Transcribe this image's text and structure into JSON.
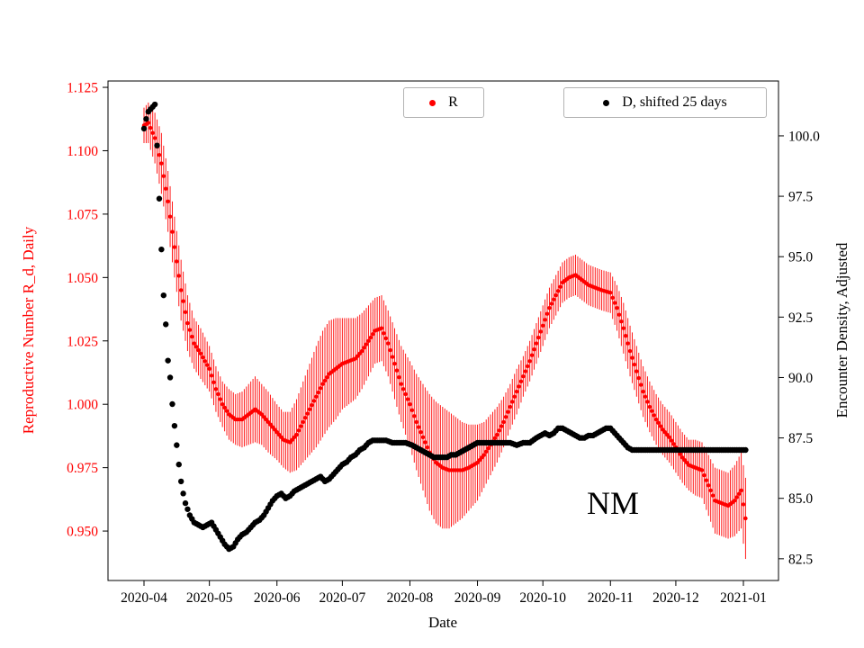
{
  "figure": {
    "xlabel": "Date",
    "ylabel_left": "Reproductive Number R_d, Daily",
    "ylabel_right": "Encounter Density, Adjusted",
    "annotation": "NM",
    "legend": [
      {
        "label": "R",
        "color": "#ff0000"
      },
      {
        "label": "D, shifted 25 days",
        "color": "#000000"
      }
    ]
  },
  "chart_data": {
    "type": "scatter",
    "title": "",
    "xlabel": "Date",
    "annotation": {
      "text": "NM",
      "x": "2020-10-22",
      "y_left": 0.962
    },
    "x_ticks": [
      "2020-04",
      "2020-05",
      "2020-06",
      "2020-07",
      "2020-08",
      "2020-09",
      "2020-10",
      "2020-11",
      "2020-12",
      "2021-01"
    ],
    "axes": {
      "left": {
        "label": "Reproductive Number R_d, Daily",
        "color": "#ff0000",
        "decimals": 3,
        "ticks": [
          0.95,
          0.975,
          1.0,
          1.025,
          1.05,
          1.075,
          1.1,
          1.125
        ],
        "range": [
          0.9305,
          1.1275
        ]
      },
      "right": {
        "label": "Encounter Density, Adjusted",
        "color": "#000000",
        "decimals": 1,
        "ticks": [
          82.5,
          85.0,
          87.5,
          90.0,
          92.5,
          95.0,
          97.5,
          100.0
        ],
        "range": [
          81.6,
          102.27
        ]
      }
    },
    "series": [
      {
        "name": "R",
        "axis": "left",
        "color": "#ff0000",
        "marker": "dot",
        "marker_r": 2.2,
        "error_bars": true,
        "points": [
          [
            "2020-04-01",
            1.11,
            0.007
          ],
          [
            "2020-04-03",
            1.111,
            0.008
          ],
          [
            "2020-04-06",
            1.105,
            0.01
          ],
          [
            "2020-04-09",
            1.095,
            0.012
          ],
          [
            "2020-04-12",
            1.08,
            0.012
          ],
          [
            "2020-04-15",
            1.062,
            0.012
          ],
          [
            "2020-04-18",
            1.045,
            0.012
          ],
          [
            "2020-04-21",
            1.032,
            0.011
          ],
          [
            "2020-04-24",
            1.024,
            0.01
          ],
          [
            "2020-04-27",
            1.02,
            0.01
          ],
          [
            "2020-05-01",
            1.014,
            0.009
          ],
          [
            "2020-05-04",
            1.006,
            0.009
          ],
          [
            "2020-05-07",
            1.0,
            0.009
          ],
          [
            "2020-05-10",
            0.996,
            0.01
          ],
          [
            "2020-05-13",
            0.994,
            0.01
          ],
          [
            "2020-05-16",
            0.994,
            0.011
          ],
          [
            "2020-05-19",
            0.996,
            0.012
          ],
          [
            "2020-05-22",
            0.998,
            0.013
          ],
          [
            "2020-05-25",
            0.996,
            0.012
          ],
          [
            "2020-05-28",
            0.993,
            0.012
          ],
          [
            "2020-06-01",
            0.989,
            0.011
          ],
          [
            "2020-06-04",
            0.986,
            0.011
          ],
          [
            "2020-06-07",
            0.985,
            0.012
          ],
          [
            "2020-06-10",
            0.988,
            0.014
          ],
          [
            "2020-06-13",
            0.993,
            0.016
          ],
          [
            "2020-06-16",
            0.998,
            0.018
          ],
          [
            "2020-06-19",
            1.003,
            0.02
          ],
          [
            "2020-06-22",
            1.008,
            0.021
          ],
          [
            "2020-06-25",
            1.012,
            0.021
          ],
          [
            "2020-06-28",
            1.014,
            0.02
          ],
          [
            "2020-07-01",
            1.016,
            0.018
          ],
          [
            "2020-07-04",
            1.017,
            0.017
          ],
          [
            "2020-07-07",
            1.018,
            0.016
          ],
          [
            "2020-07-10",
            1.021,
            0.015
          ],
          [
            "2020-07-13",
            1.025,
            0.014
          ],
          [
            "2020-07-16",
            1.029,
            0.013
          ],
          [
            "2020-07-19",
            1.03,
            0.013
          ],
          [
            "2020-07-22",
            1.024,
            0.013
          ],
          [
            "2020-07-25",
            1.016,
            0.014
          ],
          [
            "2020-07-28",
            1.008,
            0.015
          ],
          [
            "2020-08-01",
            1.0,
            0.017
          ],
          [
            "2020-08-04",
            0.993,
            0.019
          ],
          [
            "2020-08-07",
            0.987,
            0.021
          ],
          [
            "2020-08-10",
            0.981,
            0.023
          ],
          [
            "2020-08-13",
            0.977,
            0.024
          ],
          [
            "2020-08-16",
            0.975,
            0.024
          ],
          [
            "2020-08-19",
            0.974,
            0.023
          ],
          [
            "2020-08-22",
            0.974,
            0.021
          ],
          [
            "2020-08-25",
            0.974,
            0.019
          ],
          [
            "2020-08-28",
            0.975,
            0.017
          ],
          [
            "2020-09-01",
            0.977,
            0.015
          ],
          [
            "2020-09-04",
            0.98,
            0.013
          ],
          [
            "2020-09-07",
            0.984,
            0.012
          ],
          [
            "2020-09-10",
            0.988,
            0.011
          ],
          [
            "2020-09-13",
            0.993,
            0.01
          ],
          [
            "2020-09-16",
            0.999,
            0.009
          ],
          [
            "2020-09-19",
            1.005,
            0.009
          ],
          [
            "2020-09-22",
            1.011,
            0.008
          ],
          [
            "2020-09-25",
            1.017,
            0.008
          ],
          [
            "2020-09-28",
            1.024,
            0.008
          ],
          [
            "2020-10-01",
            1.031,
            0.008
          ],
          [
            "2020-10-04",
            1.038,
            0.008
          ],
          [
            "2020-10-07",
            1.043,
            0.008
          ],
          [
            "2020-10-10",
            1.048,
            0.008
          ],
          [
            "2020-10-13",
            1.05,
            0.008
          ],
          [
            "2020-10-16",
            1.051,
            0.008
          ],
          [
            "2020-10-19",
            1.049,
            0.008
          ],
          [
            "2020-10-22",
            1.047,
            0.008
          ],
          [
            "2020-10-25",
            1.046,
            0.008
          ],
          [
            "2020-10-28",
            1.045,
            0.008
          ],
          [
            "2020-11-01",
            1.044,
            0.008
          ],
          [
            "2020-11-04",
            1.038,
            0.009
          ],
          [
            "2020-11-07",
            1.03,
            0.01
          ],
          [
            "2020-11-10",
            1.021,
            0.01
          ],
          [
            "2020-11-13",
            1.013,
            0.01
          ],
          [
            "2020-11-16",
            1.005,
            0.01
          ],
          [
            "2020-11-19",
            0.999,
            0.01
          ],
          [
            "2020-11-22",
            0.994,
            0.01
          ],
          [
            "2020-11-25",
            0.99,
            0.01
          ],
          [
            "2020-11-28",
            0.987,
            0.01
          ],
          [
            "2020-12-01",
            0.983,
            0.01
          ],
          [
            "2020-12-04",
            0.979,
            0.01
          ],
          [
            "2020-12-07",
            0.976,
            0.01
          ],
          [
            "2020-12-10",
            0.975,
            0.011
          ],
          [
            "2020-12-13",
            0.974,
            0.011
          ],
          [
            "2020-12-16",
            0.968,
            0.012
          ],
          [
            "2020-12-19",
            0.962,
            0.013
          ],
          [
            "2020-12-22",
            0.961,
            0.013
          ],
          [
            "2020-12-25",
            0.96,
            0.013
          ],
          [
            "2020-12-28",
            0.962,
            0.014
          ],
          [
            "2020-12-31",
            0.966,
            0.015
          ],
          [
            "2021-01-02",
            0.955,
            0.016
          ]
        ]
      },
      {
        "name": "D, shifted 25 days",
        "axis": "right",
        "color": "#000000",
        "marker": "dot",
        "marker_r": 3.2,
        "error_bars": false,
        "points": [
          [
            "2020-04-01",
            100.3
          ],
          [
            "2020-04-02",
            100.7
          ],
          [
            "2020-04-03",
            101.0
          ],
          [
            "2020-04-04",
            101.1
          ],
          [
            "2020-04-05",
            101.2
          ],
          [
            "2020-04-06",
            101.3
          ],
          [
            "2020-04-07",
            99.6
          ],
          [
            "2020-04-08",
            97.4
          ],
          [
            "2020-04-09",
            95.3
          ],
          [
            "2020-04-10",
            93.4
          ],
          [
            "2020-04-11",
            92.2
          ],
          [
            "2020-04-12",
            90.7
          ],
          [
            "2020-04-13",
            90.0
          ],
          [
            "2020-04-14",
            88.9
          ],
          [
            "2020-04-15",
            88.0
          ],
          [
            "2020-04-16",
            87.2
          ],
          [
            "2020-04-17",
            86.4
          ],
          [
            "2020-04-18",
            85.7
          ],
          [
            "2020-04-19",
            85.2
          ],
          [
            "2020-04-20",
            84.8
          ],
          [
            "2020-04-22",
            84.3
          ],
          [
            "2020-04-24",
            84.0
          ],
          [
            "2020-04-26",
            83.9
          ],
          [
            "2020-04-28",
            83.8
          ],
          [
            "2020-04-30",
            83.9
          ],
          [
            "2020-05-02",
            84.0
          ],
          [
            "2020-05-04",
            83.7
          ],
          [
            "2020-05-06",
            83.4
          ],
          [
            "2020-05-08",
            83.1
          ],
          [
            "2020-05-10",
            82.9
          ],
          [
            "2020-05-12",
            83.0
          ],
          [
            "2020-05-14",
            83.3
          ],
          [
            "2020-05-16",
            83.5
          ],
          [
            "2020-05-18",
            83.6
          ],
          [
            "2020-05-20",
            83.8
          ],
          [
            "2020-05-22",
            84.0
          ],
          [
            "2020-05-24",
            84.1
          ],
          [
            "2020-05-26",
            84.3
          ],
          [
            "2020-05-28",
            84.6
          ],
          [
            "2020-05-30",
            84.9
          ],
          [
            "2020-06-01",
            85.1
          ],
          [
            "2020-06-03",
            85.2
          ],
          [
            "2020-06-05",
            85.0
          ],
          [
            "2020-06-07",
            85.1
          ],
          [
            "2020-06-09",
            85.3
          ],
          [
            "2020-06-11",
            85.4
          ],
          [
            "2020-06-13",
            85.5
          ],
          [
            "2020-06-15",
            85.6
          ],
          [
            "2020-06-17",
            85.7
          ],
          [
            "2020-06-19",
            85.8
          ],
          [
            "2020-06-21",
            85.9
          ],
          [
            "2020-06-23",
            85.7
          ],
          [
            "2020-06-25",
            85.8
          ],
          [
            "2020-06-27",
            86.0
          ],
          [
            "2020-06-29",
            86.2
          ],
          [
            "2020-07-01",
            86.4
          ],
          [
            "2020-07-03",
            86.5
          ],
          [
            "2020-07-05",
            86.7
          ],
          [
            "2020-07-07",
            86.8
          ],
          [
            "2020-07-09",
            87.0
          ],
          [
            "2020-07-11",
            87.1
          ],
          [
            "2020-07-13",
            87.3
          ],
          [
            "2020-07-15",
            87.4
          ],
          [
            "2020-07-18",
            87.4
          ],
          [
            "2020-07-21",
            87.4
          ],
          [
            "2020-07-24",
            87.3
          ],
          [
            "2020-07-27",
            87.3
          ],
          [
            "2020-07-30",
            87.3
          ],
          [
            "2020-08-02",
            87.2
          ],
          [
            "2020-08-04",
            87.1
          ],
          [
            "2020-08-06",
            87.0
          ],
          [
            "2020-08-08",
            86.9
          ],
          [
            "2020-08-10",
            86.8
          ],
          [
            "2020-08-12",
            86.7
          ],
          [
            "2020-08-15",
            86.7
          ],
          [
            "2020-08-18",
            86.7
          ],
          [
            "2020-08-20",
            86.8
          ],
          [
            "2020-08-22",
            86.8
          ],
          [
            "2020-08-24",
            86.9
          ],
          [
            "2020-08-26",
            87.0
          ],
          [
            "2020-08-28",
            87.1
          ],
          [
            "2020-08-30",
            87.2
          ],
          [
            "2020-09-01",
            87.3
          ],
          [
            "2020-09-04",
            87.3
          ],
          [
            "2020-09-08",
            87.3
          ],
          [
            "2020-09-12",
            87.3
          ],
          [
            "2020-09-16",
            87.3
          ],
          [
            "2020-09-19",
            87.2
          ],
          [
            "2020-09-22",
            87.3
          ],
          [
            "2020-09-25",
            87.3
          ],
          [
            "2020-09-28",
            87.5
          ],
          [
            "2020-09-30",
            87.6
          ],
          [
            "2020-10-02",
            87.7
          ],
          [
            "2020-10-04",
            87.6
          ],
          [
            "2020-10-06",
            87.7
          ],
          [
            "2020-10-08",
            87.9
          ],
          [
            "2020-10-10",
            87.9
          ],
          [
            "2020-10-12",
            87.8
          ],
          [
            "2020-10-14",
            87.7
          ],
          [
            "2020-10-16",
            87.6
          ],
          [
            "2020-10-18",
            87.5
          ],
          [
            "2020-10-20",
            87.5
          ],
          [
            "2020-10-22",
            87.6
          ],
          [
            "2020-10-24",
            87.6
          ],
          [
            "2020-10-26",
            87.7
          ],
          [
            "2020-10-28",
            87.8
          ],
          [
            "2020-10-30",
            87.9
          ],
          [
            "2020-11-01",
            87.9
          ],
          [
            "2020-11-03",
            87.7
          ],
          [
            "2020-11-05",
            87.5
          ],
          [
            "2020-11-07",
            87.3
          ],
          [
            "2020-11-09",
            87.1
          ],
          [
            "2020-11-11",
            87.0
          ],
          [
            "2020-11-15",
            87.0
          ],
          [
            "2020-12-01",
            87.0
          ],
          [
            "2020-12-15",
            87.0
          ],
          [
            "2021-01-02",
            87.0
          ]
        ]
      }
    ]
  }
}
